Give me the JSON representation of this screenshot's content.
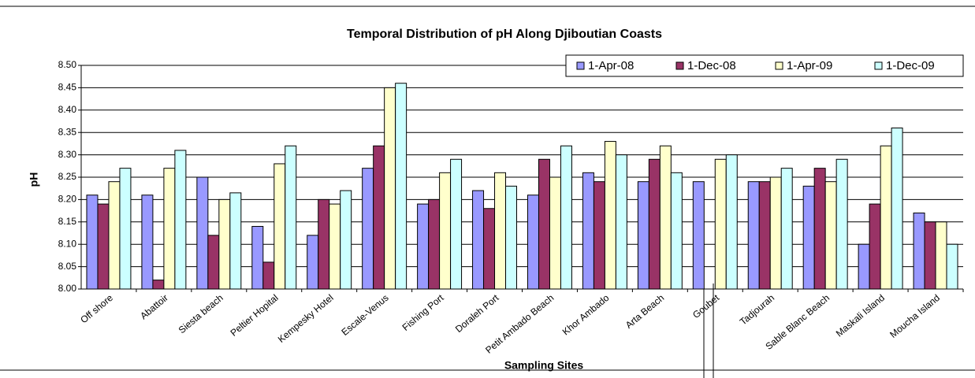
{
  "chart_data": {
    "type": "bar",
    "title": "Temporal Distribution of pH Along Djiboutian Coasts",
    "x_label": "Sampling Sites",
    "y_label": "pH",
    "categories": [
      "Off shore",
      "Abattoir",
      "Siesta beach",
      "Peltier Hopital",
      "Kempesky Hotel",
      "Escale-Venus",
      "Fishing Port",
      "Doraleh Port",
      "Petit Ambado Beach",
      "Khor Ambado",
      "Arta Beach",
      "Goubet",
      "Tadjourah",
      "Sable Blanc Beach",
      "Maskali Island",
      "Moucha Island"
    ],
    "series": [
      {
        "name": "1-Apr-08",
        "color": "#9999ff",
        "values": [
          8.21,
          8.21,
          8.25,
          8.14,
          8.12,
          8.27,
          8.19,
          8.22,
          8.21,
          8.26,
          8.24,
          8.24,
          8.24,
          8.23,
          8.1,
          8.17
        ]
      },
      {
        "name": "1-Dec-08",
        "color": "#993366",
        "values": [
          8.19,
          8.02,
          8.12,
          8.06,
          8.2,
          8.32,
          8.2,
          8.18,
          8.29,
          8.24,
          8.29,
          null,
          8.24,
          8.27,
          8.19,
          8.15
        ]
      },
      {
        "name": "1-Apr-09",
        "color": "#ffffcc",
        "values": [
          8.24,
          8.27,
          8.2,
          8.28,
          8.19,
          8.45,
          8.26,
          8.26,
          8.25,
          8.33,
          8.32,
          8.29,
          8.25,
          8.24,
          8.32,
          8.15
        ]
      },
      {
        "name": "1-Dec-09",
        "color": "#ccffff",
        "values": [
          8.27,
          8.31,
          8.215,
          8.32,
          8.22,
          8.46,
          8.29,
          8.23,
          8.32,
          8.3,
          8.26,
          8.3,
          8.27,
          8.29,
          8.36,
          8.1
        ]
      }
    ],
    "ylim": [
      8.0,
      8.5
    ],
    "yticks": [
      {
        "value": 8.0,
        "label": "8.00"
      },
      {
        "value": 8.05,
        "label": "8.05"
      },
      {
        "value": 8.1,
        "label": "8.10"
      },
      {
        "value": 8.15,
        "label": "8.15"
      },
      {
        "value": 8.2,
        "label": "8.20"
      },
      {
        "value": 8.25,
        "label": "8.25"
      },
      {
        "value": 8.3,
        "label": "8.30"
      },
      {
        "value": 8.35,
        "label": "8.35"
      },
      {
        "value": 8.4,
        "label": "8.40"
      },
      {
        "value": 8.45,
        "label": "8.45"
      },
      {
        "value": 8.5,
        "label": "8.50"
      }
    ],
    "grid": true,
    "legend": "top-right"
  }
}
